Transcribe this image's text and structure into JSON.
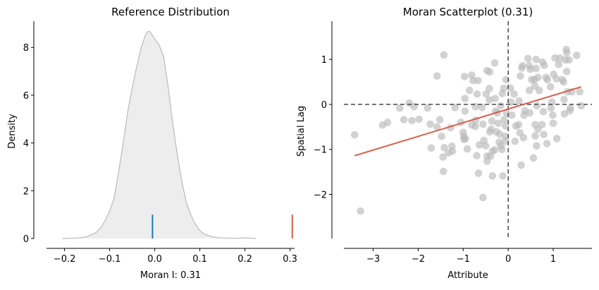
{
  "chart_data": [
    {
      "type": "area",
      "title": "Reference Distribution",
      "xlabel": "Moran I: 0.31",
      "ylabel": "Density",
      "xlim": [
        -0.24,
        0.31
      ],
      "ylim": [
        0,
        9.1
      ],
      "xticks": [
        "−0.2",
        "−0.1",
        "0.0",
        "0.1",
        "0.2",
        "0.3"
      ],
      "xtick_values": [
        -0.2,
        -0.1,
        0.0,
        0.1,
        0.2,
        0.3
      ],
      "yticks": [
        "0",
        "2",
        "4",
        "6",
        "8"
      ],
      "ytick_values": [
        0,
        2,
        4,
        6,
        8
      ],
      "grid": false,
      "density": {
        "x": [
          -0.205,
          -0.17,
          -0.15,
          -0.13,
          -0.12,
          -0.11,
          -0.1,
          -0.09,
          -0.08,
          -0.07,
          -0.06,
          -0.05,
          -0.04,
          -0.03,
          -0.02,
          -0.015,
          -0.01,
          0.0,
          0.01,
          0.02,
          0.03,
          0.04,
          0.05,
          0.06,
          0.07,
          0.08,
          0.09,
          0.1,
          0.11,
          0.13,
          0.15,
          0.18,
          0.2,
          0.224
        ],
        "y": [
          0,
          0.02,
          0.08,
          0.25,
          0.45,
          0.75,
          1.15,
          1.7,
          2.8,
          4.0,
          5.3,
          6.3,
          7.2,
          8.0,
          8.55,
          8.68,
          8.65,
          8.35,
          8.1,
          7.6,
          6.3,
          4.8,
          3.5,
          2.4,
          1.5,
          1.0,
          0.6,
          0.33,
          0.18,
          0.06,
          0.02,
          0.01,
          0.03,
          0
        ]
      },
      "fill_color": "#ededed",
      "line_color": "#bababa",
      "markers": [
        {
          "x": -0.005,
          "height": 1,
          "color": "#1f77b4"
        },
        {
          "x": 0.305,
          "height": 1,
          "color": "#d6604d"
        }
      ]
    },
    {
      "type": "scatter",
      "title": "Moran Scatterplot (0.31)",
      "xlabel": "Attribute",
      "ylabel": "Spatial Lag",
      "xlim": [
        -3.65,
        1.86
      ],
      "ylim": [
        -2.98,
        1.85
      ],
      "xticks": [
        "−3",
        "−2",
        "−1",
        "0",
        "1"
      ],
      "xtick_values": [
        -3,
        -2,
        -1,
        0,
        1
      ],
      "yticks": [
        "−2",
        "−1",
        "0",
        "1"
      ],
      "ytick_values": [
        -2,
        -1,
        0,
        1
      ],
      "grid": false,
      "point_color": "#bababa",
      "fit_color": "#d6604d",
      "reference_line_color": "#555555",
      "fit": {
        "slope": 0.304,
        "intercept": -0.103
      },
      "points": [
        [
          -3.41,
          -0.675
        ],
        [
          -3.28,
          -2.37
        ],
        [
          -2.79,
          -0.46
        ],
        [
          -2.68,
          -0.4
        ],
        [
          -2.41,
          -0.08
        ],
        [
          -2.32,
          -0.34
        ],
        [
          -2.2,
          0.03
        ],
        [
          -2.14,
          -0.36
        ],
        [
          -2.09,
          -0.05
        ],
        [
          -1.98,
          -0.33
        ],
        [
          -1.79,
          -0.08
        ],
        [
          -1.73,
          -0.44
        ],
        [
          -1.71,
          -0.97
        ],
        [
          -1.58,
          0.63
        ],
        [
          -1.58,
          -0.5
        ],
        [
          -1.52,
          -0.34
        ],
        [
          -1.48,
          -0.71
        ],
        [
          -1.44,
          -1.49
        ],
        [
          -1.43,
          1.1
        ],
        [
          -1.45,
          -1.17
        ],
        [
          -1.42,
          -0.96
        ],
        [
          -1.33,
          -1.08
        ],
        [
          -1.28,
          -0.52
        ],
        [
          -1.25,
          -0.93
        ],
        [
          -1.24,
          -1.04
        ],
        [
          -1.18,
          -0.07
        ],
        [
          -1.05,
          -0.4
        ],
        [
          -1.0,
          -0.62
        ],
        [
          -0.99,
          -0.71
        ],
        [
          -0.98,
          -0.78
        ],
        [
          -0.95,
          -0.76
        ],
        [
          -0.97,
          0.62
        ],
        [
          -0.96,
          0.13
        ],
        [
          -0.96,
          -0.15
        ],
        [
          -0.91,
          -0.99
        ],
        [
          -0.86,
          0.31
        ],
        [
          -0.81,
          0.65
        ],
        [
          -0.81,
          -0.46
        ],
        [
          -0.78,
          0.53
        ],
        [
          -0.73,
          -0.49
        ],
        [
          -0.73,
          -0.05
        ],
        [
          -0.72,
          -0.35
        ],
        [
          -0.7,
          -1.14
        ],
        [
          -0.69,
          0.23
        ],
        [
          -0.67,
          0.53
        ],
        [
          -0.66,
          -1.53
        ],
        [
          -0.64,
          -0.9
        ],
        [
          -0.58,
          -0.07
        ],
        [
          -0.56,
          -0.44
        ],
        [
          -0.56,
          -2.07
        ],
        [
          -0.54,
          -0.8
        ],
        [
          -0.5,
          -0.92
        ],
        [
          -0.49,
          0.23
        ],
        [
          -0.47,
          0.75
        ],
        [
          -0.47,
          -1.15
        ],
        [
          -0.47,
          -1.26
        ],
        [
          -0.42,
          0.35
        ],
        [
          -0.42,
          0.1
        ],
        [
          -0.41,
          0.72
        ],
        [
          -0.41,
          -0.61
        ],
        [
          -0.39,
          -1.15
        ],
        [
          -0.38,
          -0.55
        ],
        [
          -0.36,
          -0.37
        ],
        [
          -0.35,
          -1.04
        ],
        [
          -0.35,
          -1.59
        ],
        [
          -0.3,
          0.92
        ],
        [
          -0.3,
          -1.01
        ],
        [
          -0.29,
          0.13
        ],
        [
          -0.28,
          -0.15
        ],
        [
          -0.26,
          -0.61
        ],
        [
          -0.24,
          -0.19
        ],
        [
          -0.22,
          -0.42
        ],
        [
          -0.2,
          -0.84
        ],
        [
          -0.19,
          -0.66
        ],
        [
          -0.17,
          -0.03
        ],
        [
          -0.16,
          -0.92
        ],
        [
          -0.14,
          -1.0
        ],
        [
          -0.13,
          0.24
        ],
        [
          -0.12,
          -1.59
        ],
        [
          -0.1,
          0.36
        ],
        [
          -0.09,
          -0.34
        ],
        [
          -0.07,
          -0.71
        ],
        [
          -0.06,
          -0.82
        ],
        [
          -0.06,
          -0.48
        ],
        [
          -0.05,
          0.55
        ],
        [
          -0.04,
          -0.19
        ],
        [
          0.05,
          0.36
        ],
        [
          0.06,
          0.05
        ],
        [
          0.08,
          -0.24
        ],
        [
          0.13,
          0.23
        ],
        [
          0.15,
          -0.82
        ],
        [
          0.17,
          -0.48
        ],
        [
          0.23,
          -0.45
        ],
        [
          0.24,
          0.08
        ],
        [
          0.26,
          -0.63
        ],
        [
          0.27,
          0.63
        ],
        [
          0.29,
          -1.35
        ],
        [
          0.3,
          0.81
        ],
        [
          0.32,
          0.86
        ],
        [
          0.34,
          -0.74
        ],
        [
          0.35,
          -0.24
        ],
        [
          0.37,
          -0.14
        ],
        [
          0.44,
          1.02
        ],
        [
          0.47,
          0.31
        ],
        [
          0.47,
          0.86
        ],
        [
          0.48,
          -0.19
        ],
        [
          0.49,
          0.78
        ],
        [
          0.52,
          0.55
        ],
        [
          0.56,
          -1.19
        ],
        [
          0.58,
          0.55
        ],
        [
          0.59,
          0.41
        ],
        [
          0.6,
          -0.7
        ],
        [
          0.6,
          -0.45
        ],
        [
          0.62,
          1.0
        ],
        [
          0.62,
          0.8
        ],
        [
          0.63,
          -0.92
        ],
        [
          0.64,
          -0.03
        ],
        [
          0.66,
          -0.55
        ],
        [
          0.66,
          0.6
        ],
        [
          0.69,
          0.31
        ],
        [
          0.75,
          -0.45
        ],
        [
          0.76,
          0.94
        ],
        [
          0.78,
          -0.16
        ],
        [
          0.79,
          -0.67
        ],
        [
          0.8,
          0.87
        ],
        [
          0.84,
          0.6
        ],
        [
          0.86,
          -0.87
        ],
        [
          0.87,
          0.55
        ],
        [
          0.94,
          0.39
        ],
        [
          0.95,
          -0.08
        ],
        [
          0.97,
          0.05
        ],
        [
          0.99,
          -0.24
        ],
        [
          1.0,
          -0.42
        ],
        [
          1.01,
          0.67
        ],
        [
          1.04,
          1.03
        ],
        [
          1.07,
          0.57
        ],
        [
          1.08,
          -0.76
        ],
        [
          1.12,
          0.89
        ],
        [
          1.15,
          1.03
        ],
        [
          1.2,
          0.55
        ],
        [
          1.23,
          0.5
        ],
        [
          1.24,
          0.11
        ],
        [
          1.25,
          -0.21
        ],
        [
          1.27,
          0.99
        ],
        [
          1.29,
          1.22
        ],
        [
          1.3,
          1.15
        ],
        [
          1.3,
          0.73
        ],
        [
          1.32,
          0.28
        ],
        [
          1.35,
          0.99
        ],
        [
          1.37,
          -0.14
        ],
        [
          1.38,
          -0.08
        ],
        [
          1.41,
          0.28
        ],
        [
          1.52,
          1.09
        ],
        [
          1.59,
          0.28
        ],
        [
          1.62,
          -0.03
        ]
      ]
    }
  ]
}
